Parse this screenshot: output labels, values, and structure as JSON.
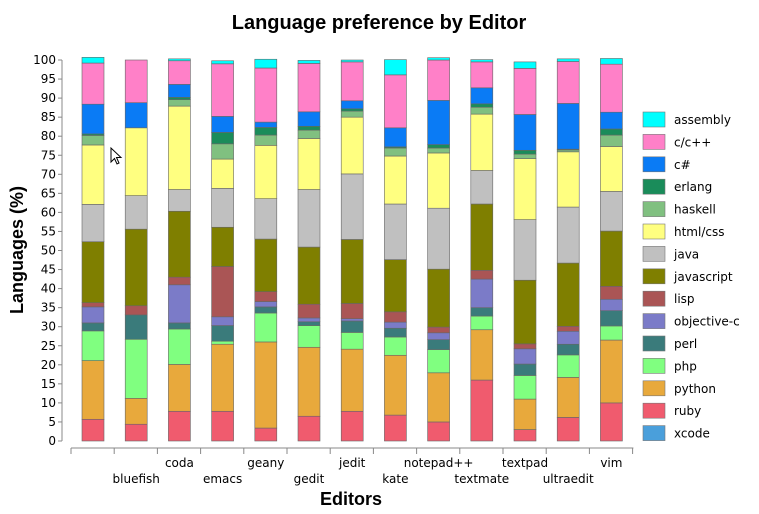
{
  "chart_data": {
    "type": "bar",
    "stacked": true,
    "title": "Language preference by Editor",
    "xlabel": "Editors",
    "ylabel": "Languages (%)",
    "ylim": [
      0,
      100
    ],
    "yticks": [
      0,
      5,
      10,
      15,
      20,
      25,
      30,
      35,
      40,
      45,
      50,
      55,
      60,
      65,
      70,
      75,
      80,
      85,
      90,
      95,
      100
    ],
    "grid": false,
    "legend_position": "right",
    "categories": [
      "",
      "bluefish",
      "coda",
      "emacs",
      "geany",
      "gedit",
      "jedit",
      "kate",
      "notepad++",
      "textmate",
      "textpad",
      "ultraedit",
      "vim"
    ],
    "series": [
      {
        "name": "xcode",
        "color": "#4a9fdb",
        "values": [
          0,
          0,
          0,
          0,
          0,
          0,
          0,
          0,
          0,
          0,
          0,
          0,
          0
        ]
      },
      {
        "name": "ruby",
        "color": "#f05b6e",
        "values": [
          5.7,
          4.4,
          7.8,
          7.8,
          3.4,
          6.5,
          7.8,
          6.8,
          5.0,
          16.0,
          3.0,
          6.2,
          10.0
        ]
      },
      {
        "name": "python",
        "color": "#e8a93c",
        "values": [
          15.4,
          6.8,
          12.3,
          17.6,
          22.6,
          18.1,
          16.3,
          15.7,
          12.9,
          13.2,
          8.0,
          10.5,
          16.5
        ]
      },
      {
        "name": "php",
        "color": "#80ff80",
        "values": [
          7.8,
          15.5,
          9.3,
          0.8,
          7.6,
          5.7,
          4.4,
          4.8,
          6.1,
          3.6,
          6.2,
          5.9,
          3.7
        ]
      },
      {
        "name": "perl",
        "color": "#3a7b7b",
        "values": [
          2.1,
          6.4,
          1.6,
          4.1,
          1.6,
          1.0,
          3.0,
          2.3,
          2.6,
          2.2,
          3.0,
          2.8,
          4.0
        ]
      },
      {
        "name": "objective-c",
        "color": "#7b7bc8",
        "values": [
          4.2,
          0,
          10.0,
          2.3,
          1.4,
          1.0,
          0.6,
          1.6,
          1.8,
          7.5,
          4.0,
          3.4,
          3.0
        ]
      },
      {
        "name": "lisp",
        "color": "#aa5555",
        "values": [
          1.1,
          2.4,
          2.0,
          13.2,
          2.6,
          3.6,
          4.0,
          2.7,
          1.5,
          2.3,
          1.3,
          1.3,
          3.4
        ]
      },
      {
        "name": "javascript",
        "color": "#7f7f00",
        "values": [
          16.0,
          20.1,
          17.3,
          10.3,
          13.8,
          15.0,
          16.8,
          13.7,
          15.2,
          17.4,
          16.7,
          16.6,
          14.5
        ]
      },
      {
        "name": "java",
        "color": "#c0c0c0",
        "values": [
          9.8,
          8.8,
          5.7,
          10.2,
          10.6,
          15.1,
          17.2,
          14.6,
          16.0,
          8.8,
          15.9,
          14.7,
          10.4
        ]
      },
      {
        "name": "html/css",
        "color": "#ffff80",
        "values": [
          15.6,
          17.8,
          21.9,
          7.7,
          14.0,
          13.4,
          14.9,
          12.6,
          14.5,
          14.8,
          16.0,
          14.5,
          11.8
        ]
      },
      {
        "name": "haskell",
        "color": "#80c080",
        "values": [
          2.5,
          0,
          1.7,
          4.0,
          2.7,
          2.2,
          1.6,
          2.1,
          1.3,
          1.8,
          1.2,
          0.5,
          3.0
        ]
      },
      {
        "name": "erlang",
        "color": "#1a8c5a",
        "values": [
          0.4,
          0,
          0.6,
          3.0,
          2.0,
          1.0,
          0.6,
          0.3,
          0.9,
          0.9,
          1.0,
          0.2,
          1.6
        ]
      },
      {
        "name": "c#",
        "color": "#0a7bf5",
        "values": [
          7.8,
          6.6,
          3.4,
          4.2,
          1.4,
          3.8,
          2.1,
          5.0,
          11.6,
          4.2,
          9.4,
          12.0,
          4.4
        ]
      },
      {
        "name": "c/c++",
        "color": "#ff80c8",
        "values": [
          10.8,
          11.2,
          6.2,
          13.8,
          14.2,
          12.7,
          10.2,
          13.9,
          10.6,
          6.8,
          12.1,
          11.0,
          12.6
        ]
      },
      {
        "name": "assembly",
        "color": "#00ffff",
        "values": [
          1.5,
          0,
          0.5,
          0.8,
          2.3,
          0.8,
          0.5,
          4.0,
          0.6,
          0.6,
          1.7,
          0.7,
          1.5
        ]
      }
    ],
    "legend_order": [
      "assembly",
      "c/c++",
      "c#",
      "erlang",
      "haskell",
      "html/css",
      "java",
      "javascript",
      "lisp",
      "objective-c",
      "perl",
      "php",
      "python",
      "ruby",
      "xcode"
    ]
  }
}
